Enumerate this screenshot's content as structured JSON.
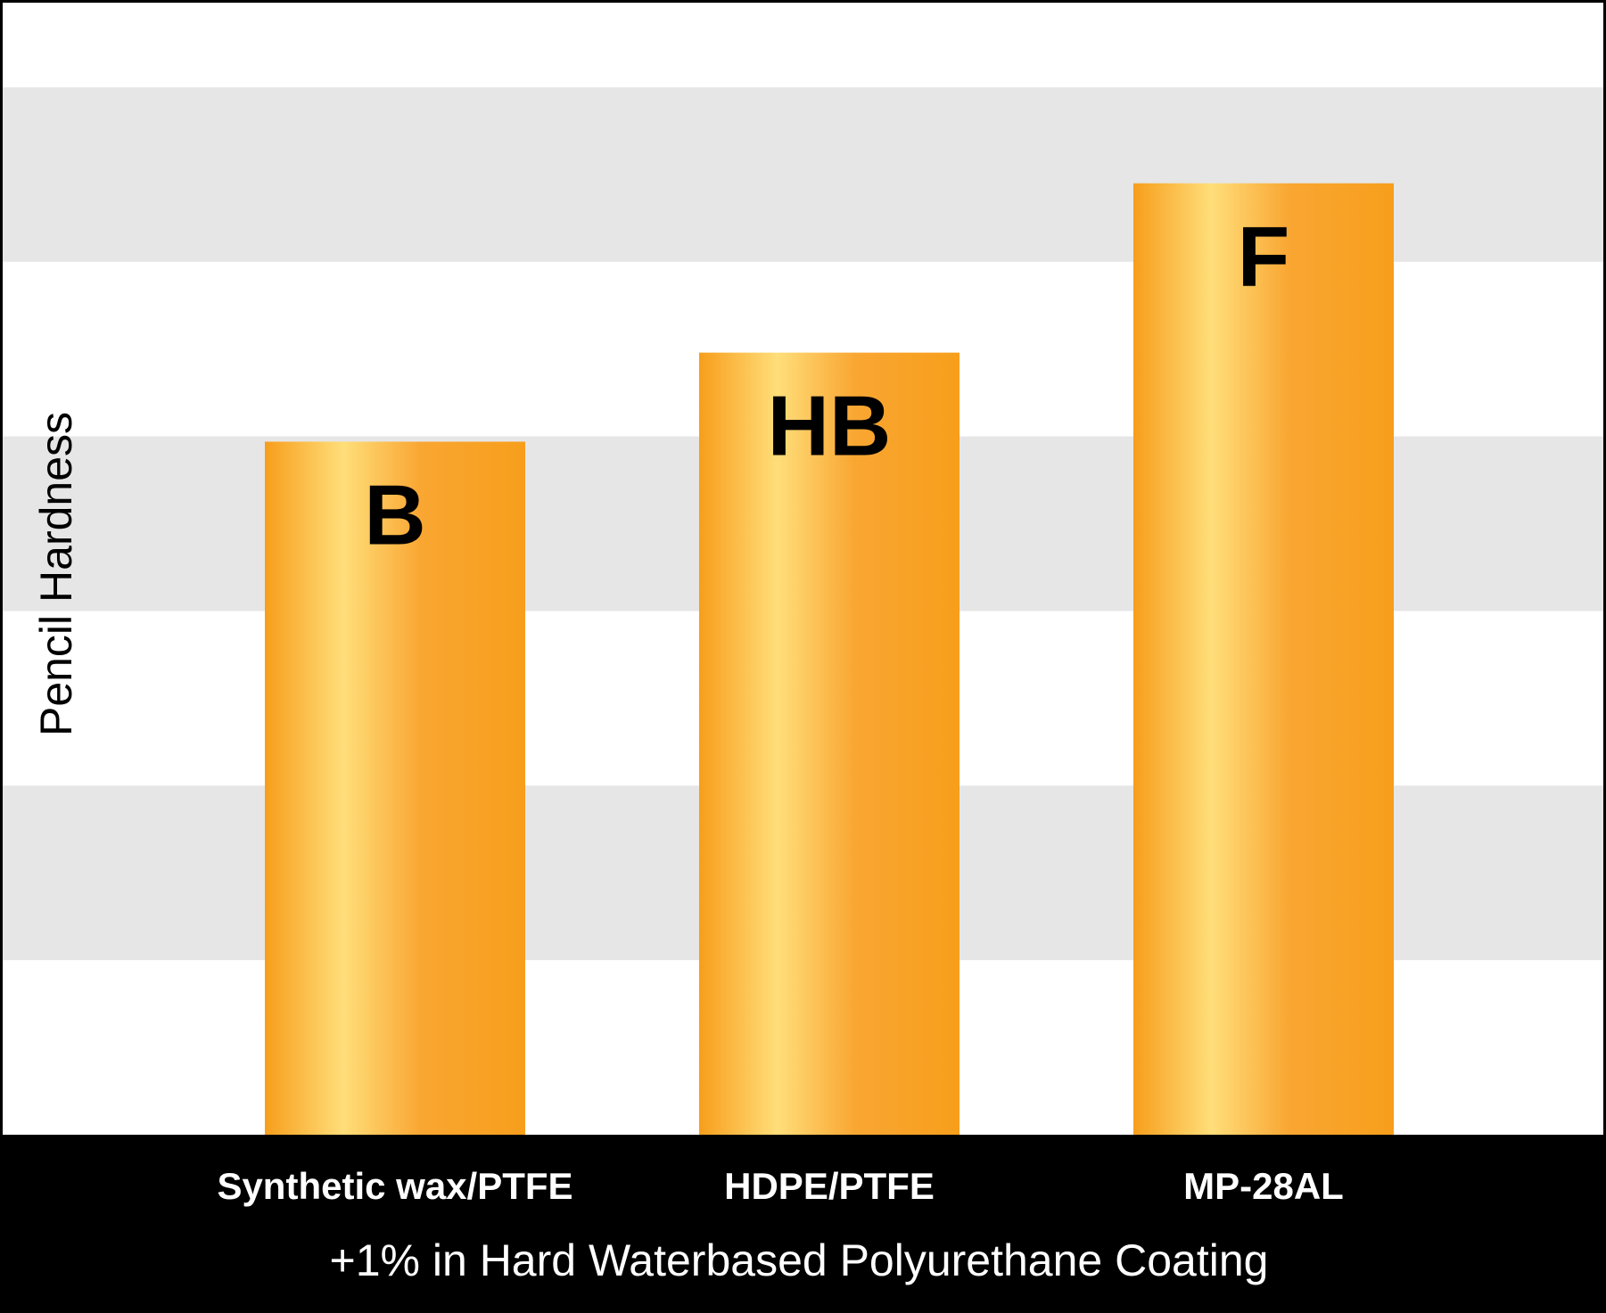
{
  "chart_data": {
    "type": "bar",
    "categories": [
      "Synthetic wax/PTFE",
      "HDPE/PTFE",
      "MP-28AL"
    ],
    "values": [
      3.97,
      4.48,
      5.45
    ],
    "data_labels": [
      "B",
      "HB",
      "F"
    ],
    "ylabel": "Pencil Hardness",
    "xlabel": "+1% in Hard Waterbased Polyurethane Coating",
    "ylim": [
      0,
      6.5
    ],
    "grid": "alternating horizontal bands",
    "legend": "none"
  },
  "colors": {
    "bar": "#f79e1b",
    "bar_highlight": "#ffde7a",
    "band": "#e6e6e7",
    "background": "#ffffff",
    "axis_bar": "#000000",
    "category_text": "#ffffff",
    "data_label_text": "#000000",
    "ylabel_text": "#000000"
  }
}
